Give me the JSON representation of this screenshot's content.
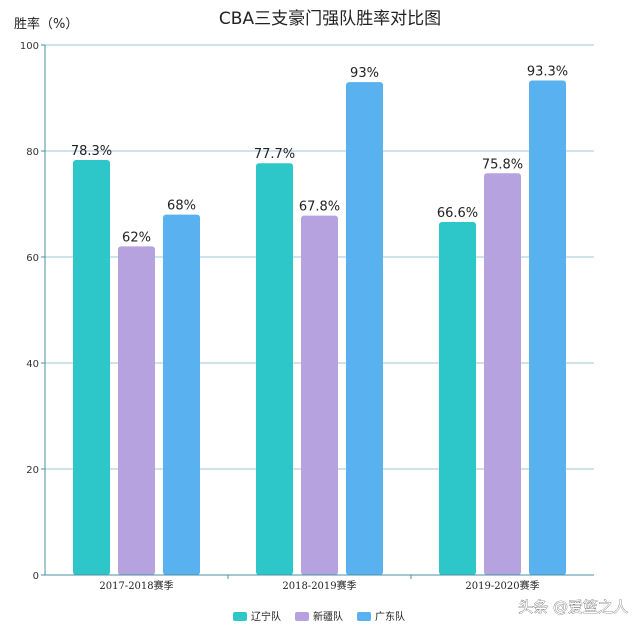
{
  "chart_data": {
    "type": "bar",
    "title": "CBA三支豪门强队胜率对比图",
    "ylabel": "胜率（%）",
    "xlabel": "",
    "categories": [
      "2017-2018赛季",
      "2018-2019赛季",
      "2019-2020赛季"
    ],
    "series": [
      {
        "name": "辽宁队",
        "color": "#2ec7c9",
        "values": [
          78.3,
          77.7,
          66.6
        ],
        "labels": [
          "78.3%",
          "77.7%",
          "66.6%"
        ]
      },
      {
        "name": "新疆队",
        "color": "#b6a2de",
        "values": [
          62,
          67.8,
          75.8
        ],
        "labels": [
          "62%",
          "67.8%",
          "75.8%"
        ]
      },
      {
        "name": "广东队",
        "color": "#5ab1ef",
        "values": [
          68,
          93,
          93.3
        ],
        "labels": [
          "68%",
          "93%",
          "93.3%"
        ]
      }
    ],
    "ylim": [
      0,
      100
    ],
    "yticks": [
      0,
      20,
      40,
      60,
      80,
      100
    ],
    "grid": true,
    "legend_position": "bottom-center",
    "axis_color": "#4a90a4",
    "grid_color": "#7fb8c9"
  },
  "watermark": "头条 @爱篮之人"
}
